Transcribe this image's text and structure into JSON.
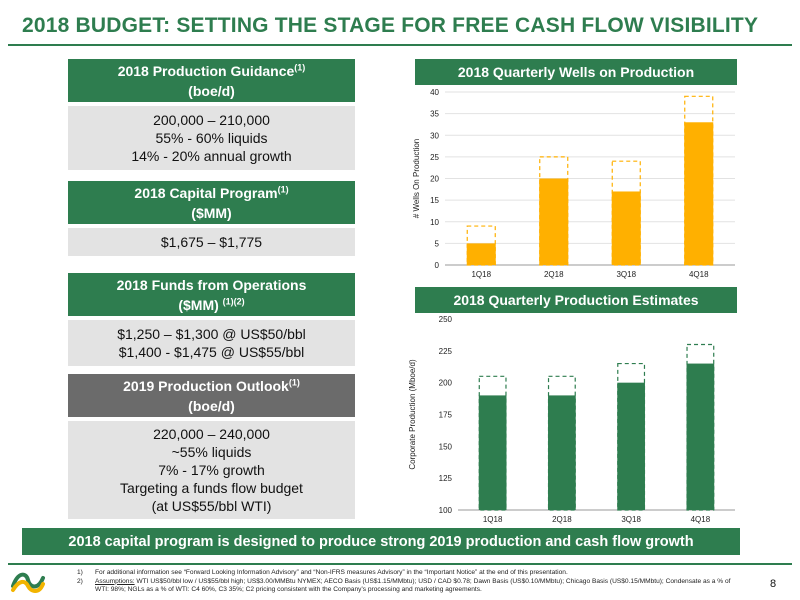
{
  "slide": {
    "title": "2018 BUDGET:  SETTING THE STAGE FOR FREE CASH FLOW VISIBILITY",
    "page_number": "8",
    "banner": "2018 capital program is designed to produce strong 2019 production and cash flow growth"
  },
  "colors": {
    "green": "#2e7d4f",
    "gray_header": "#6b6b6b",
    "box_fill": "#e3e3e3",
    "bar_orange": "#ffb000"
  },
  "boxes": [
    {
      "header_line1": "2018 Production Guidance",
      "header_sup": "(1)",
      "header_line2": "(boe/d)",
      "lines": [
        "200,000 – 210,000",
        "55% - 60% liquids",
        "14% - 20% annual growth"
      ]
    },
    {
      "header_line1": "2018 Capital Program",
      "header_sup": "(1)",
      "header_line2": "($MM)",
      "lines": [
        "$1,675 – $1,775"
      ]
    },
    {
      "header_line1": "2018 Funds from Operations",
      "header_sup": "(1)(2)",
      "header_line2": "($MM)",
      "lines": [
        "$1,250 – $1,300 @ US$50/bbl",
        "$1,400 - $1,475 @ US$55/bbl"
      ]
    },
    {
      "header_line1": "2019 Production Outlook",
      "header_sup": "(1)",
      "header_line2": "(boe/d)",
      "lines": [
        "220,000 – 240,000",
        "~55% liquids",
        "7% - 17% growth",
        "Targeting a funds flow budget",
        "(at US$55/bbl WTI)"
      ]
    }
  ],
  "chart_data": [
    {
      "type": "bar",
      "title": "2018 Quarterly Wells on Production",
      "ylabel": "# Wells On Production",
      "categories": [
        "1Q18",
        "2Q18",
        "3Q18",
        "4Q18"
      ],
      "series": [
        {
          "values": [
            5,
            20,
            17,
            33
          ],
          "style": "solid",
          "color": "#ffb000"
        },
        {
          "values": [
            9,
            25,
            24,
            39
          ],
          "style": "dashed-outline",
          "color": "#ffb000"
        }
      ],
      "yticks": [
        0,
        5,
        10,
        15,
        20,
        25,
        30,
        35,
        40
      ],
      "ylim": [
        0,
        40
      ],
      "grid": true
    },
    {
      "type": "bar",
      "title": "2018 Quarterly Production Estimates",
      "ylabel": "Corporate Production (Mboe/d)",
      "categories": [
        "1Q18",
        "2Q18",
        "3Q18",
        "4Q18"
      ],
      "series": [
        {
          "values": [
            190,
            190,
            200,
            215
          ],
          "style": "solid",
          "color": "#2e7d4f"
        },
        {
          "values": [
            205,
            205,
            215,
            230
          ],
          "style": "dashed-outline",
          "color": "#2e7d4f"
        }
      ],
      "yticks": [
        100,
        125,
        150,
        175,
        200,
        225,
        250
      ],
      "ylim": [
        100,
        250
      ],
      "grid": false
    }
  ],
  "footnotes": [
    {
      "num": "1)",
      "text": "For additional information see “Forward Looking Information Advisory” and “Non-IFRS measures Advisory” in the “Important Notice” at the end of this presentation."
    },
    {
      "num": "2)",
      "label": "Assumptions:",
      "text": " WTI US$50/bbl low / US$55/bbl high; US$3.00/MMBtu NYMEX; AECO Basis (US$1.15/MMbtu); USD / CAD $0.78; Dawn Basis (US$0.10/MMbtu); Chicago Basis (US$0.15/MMbtu); Condensate as a % of WTI: 98%; NGLs as a % of WTI: C4 60%, C3 35%; C2 pricing consistent with the Company’s processing and marketing agreements."
    }
  ]
}
